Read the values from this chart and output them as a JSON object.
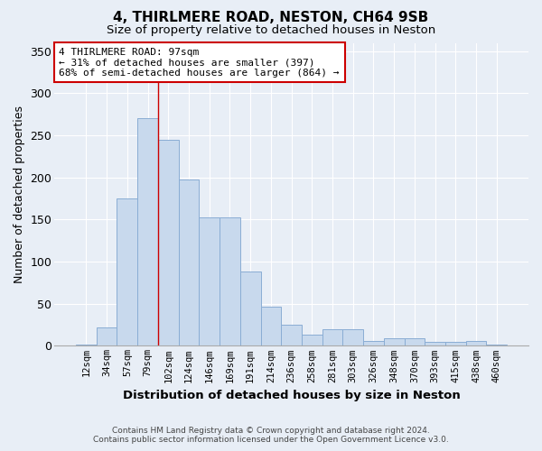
{
  "title": "4, THIRLMERE ROAD, NESTON, CH64 9SB",
  "subtitle": "Size of property relative to detached houses in Neston",
  "xlabel": "Distribution of detached houses by size in Neston",
  "ylabel": "Number of detached properties",
  "bar_labels": [
    "12sqm",
    "34sqm",
    "57sqm",
    "79sqm",
    "102sqm",
    "124sqm",
    "146sqm",
    "169sqm",
    "191sqm",
    "214sqm",
    "236sqm",
    "258sqm",
    "281sqm",
    "303sqm",
    "326sqm",
    "348sqm",
    "370sqm",
    "393sqm",
    "415sqm",
    "438sqm",
    "460sqm"
  ],
  "bar_values": [
    1,
    22,
    175,
    270,
    245,
    198,
    153,
    153,
    88,
    47,
    25,
    13,
    20,
    20,
    6,
    9,
    9,
    5,
    5,
    6,
    1
  ],
  "bar_color": "#c8d9ed",
  "bar_edge_color": "#8aadd4",
  "bg_color": "#e8eef6",
  "grid_color": "#ffffff",
  "red_line_index": 3.5,
  "annotation_line1": "4 THIRLMERE ROAD: 97sqm",
  "annotation_line2": "← 31% of detached houses are smaller (397)",
  "annotation_line3": "68% of semi-detached houses are larger (864) →",
  "annotation_box_color": "#ffffff",
  "annotation_box_edge": "#cc0000",
  "ylim": [
    0,
    360
  ],
  "yticks": [
    0,
    50,
    100,
    150,
    200,
    250,
    300,
    350
  ],
  "footer1": "Contains HM Land Registry data © Crown copyright and database right 2024.",
  "footer2": "Contains public sector information licensed under the Open Government Licence v3.0."
}
